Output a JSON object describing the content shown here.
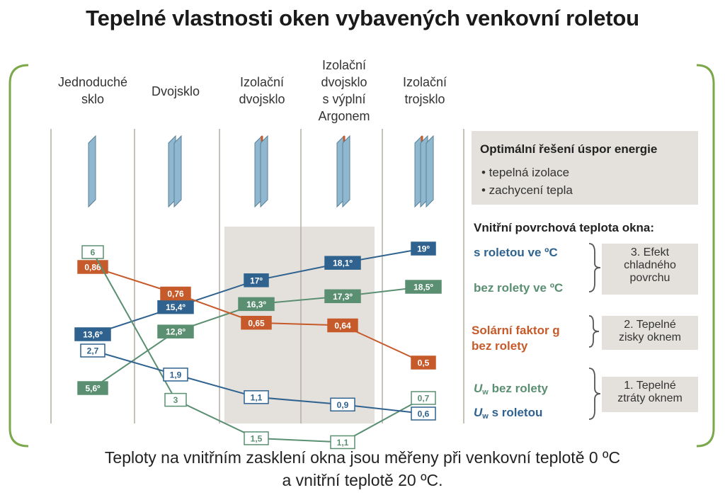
{
  "title": "Tepelné vlastnosti oken vybavených venkovní roletou",
  "columns": [
    {
      "lines": [
        "Jednoduché",
        "sklo"
      ]
    },
    {
      "lines": [
        "Dvojsklo"
      ]
    },
    {
      "lines": [
        "Izolační",
        "dvojsklo"
      ]
    },
    {
      "lines": [
        "Izolační",
        "dvojsklo",
        "s výplní",
        "Argonem"
      ]
    },
    {
      "lines": [
        "Izolační",
        "trojsklo"
      ]
    }
  ],
  "optimal_box": {
    "title": "Optimální řešení úspor energie",
    "items": [
      "• tepelná izolace",
      "• zachycení tepla"
    ]
  },
  "surface_temp_heading": "Vnitřní povrchová teplota okna:",
  "legend": {
    "with_shutter_temp": "s roletou ve ºC",
    "without_shutter_temp": "bez rolety ve ºC",
    "solar_factor_line1": "Solární faktor g",
    "solar_factor_line2": "bez rolety",
    "uw_symbol": "U",
    "uw_sub": "w",
    "uw_without": "bez rolety",
    "uw_with": "s roletou"
  },
  "effects": {
    "cold_surface": [
      "3. Efekt",
      "chladného",
      "povrchu"
    ],
    "heat_gains": [
      "2. Tepelné",
      "zisky oknem"
    ],
    "heat_losses": [
      "1. Tepelné",
      "ztráty oknem"
    ]
  },
  "footnote": [
    "Teploty na vnitřním zasklení okna jsou měřeny při venkovní teplotě 0 ºC",
    "a vnitřní teplotě 20 ºC."
  ],
  "colors": {
    "blue": "#2f628f",
    "green": "#5a8f72",
    "orange": "#c65a2a",
    "frame": "#7aa84a",
    "highlight": "#e4e1dc",
    "glass": "#8fb8d0"
  },
  "chart_data": {
    "type": "line",
    "categories": [
      "Jednoduché sklo",
      "Dvojsklo",
      "Izolační dvojsklo",
      "Izolační dvojsklo s výplní Argonem",
      "Izolační trojsklo"
    ],
    "series": [
      {
        "name": "s roletou ve ºC",
        "color": "blue",
        "style": "filled",
        "values": [
          13.6,
          15.4,
          17,
          18.1,
          19
        ],
        "labels": [
          "13,6º",
          "15,4º",
          "17º",
          "18,1º",
          "19º"
        ]
      },
      {
        "name": "bez rolety ve ºC",
        "color": "green",
        "style": "filled",
        "values": [
          5.6,
          12.8,
          16.3,
          17.3,
          18.5
        ],
        "labels": [
          "5,6º",
          "12,8º",
          "16,3º",
          "17,3º",
          "18,5º"
        ]
      },
      {
        "name": "Solární faktor g bez rolety",
        "color": "orange",
        "style": "filled",
        "values": [
          0.86,
          0.76,
          0.65,
          0.64,
          0.5
        ],
        "labels": [
          "0,86",
          "0,76",
          "0,65",
          "0,64",
          "0,5"
        ]
      },
      {
        "name": "Uw bez rolety",
        "color": "green",
        "style": "outline",
        "values": [
          6,
          3,
          1.5,
          1.1,
          0.7
        ],
        "labels": [
          "6",
          "3",
          "1,5",
          "1,1",
          "0,7"
        ]
      },
      {
        "name": "Uw s roletou",
        "color": "blue",
        "style": "outline",
        "values": [
          2.7,
          1.9,
          1.1,
          0.9,
          0.6
        ],
        "labels": [
          "2,7",
          "1,9",
          "1,1",
          "0,9",
          "0,6"
        ]
      }
    ]
  }
}
